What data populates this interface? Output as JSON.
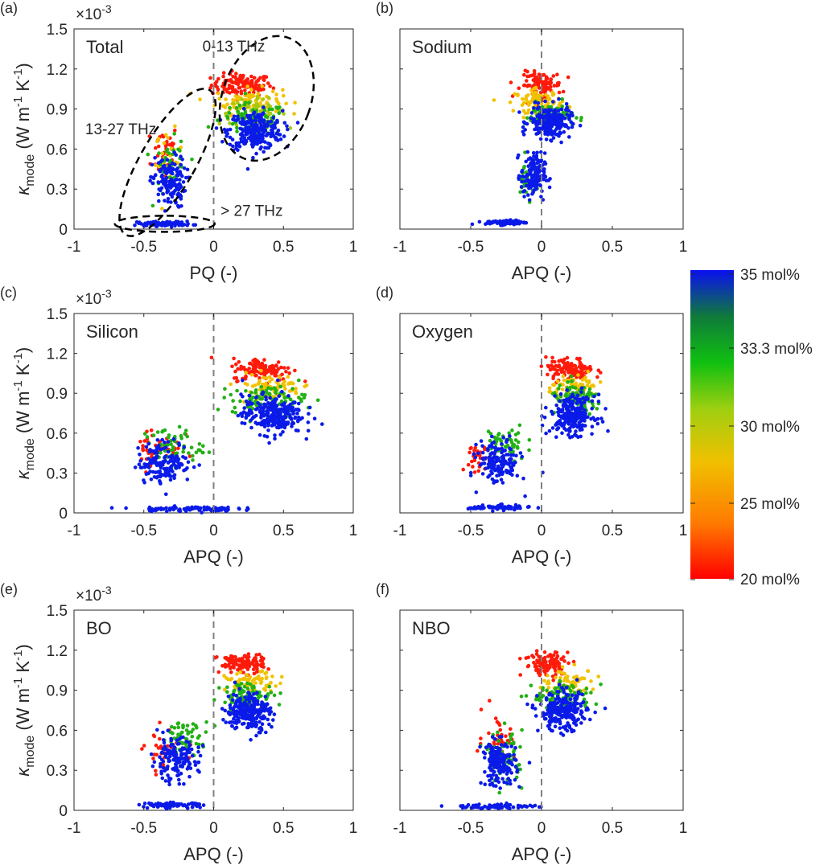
{
  "figure": {
    "colorbar": {
      "tick_labels": [
        "35 mol%",
        "33.3 mol%",
        "30 mol%",
        "25 mol%",
        "20 mol%"
      ],
      "tick_values": [
        35,
        33.3,
        30,
        25,
        20
      ],
      "colors": [
        "#0a10f0",
        "#0f7a3a",
        "#10c010",
        "#9fcf10",
        "#f0c000",
        "#ff7a00",
        "#ff0000"
      ]
    },
    "series_colors": {
      "c35": "#0a1ae8",
      "c333": "#22b014",
      "c30": "#a8c810",
      "c25": "#f2c200",
      "c20": "#ff1a0a"
    },
    "dashed_zero_color": "#808080",
    "multiplier": "×10",
    "multiplier_exp": "-3",
    "ylabel": {
      "kappa": "κ",
      "sub": "mode",
      "units_a": "(W m",
      "units_b": " K",
      "units_c": ")",
      "exp": "-1"
    }
  },
  "chart_data": [
    {
      "type": "scatter",
      "panel": "(a)",
      "title": "Total",
      "xlabel": "PQ (-)",
      "ylabel": "κ_mode (W m^-1 K^-1)",
      "xlim": [
        -1,
        1
      ],
      "ylim": [
        0,
        1.5
      ],
      "y_scale": "×10^-3",
      "xticks": [
        "-1",
        "-0.5",
        "0",
        "0.5",
        "1"
      ],
      "yticks": [
        "0",
        "0.3",
        "0.6",
        "0.9",
        "1.2",
        "1.5"
      ],
      "multiplier_shown": true,
      "annotations": [
        "0-13 THz",
        "13-27 THz",
        "> 27 THz"
      ],
      "series": [
        {
          "name": "20 mol%",
          "color": "c20",
          "clusters": [
            [
              0.2,
              1.08,
              0.18,
              0.07,
              120
            ],
            [
              -0.35,
              0.58,
              0.08,
              0.18,
              40
            ]
          ]
        },
        {
          "name": "25 mol%",
          "color": "c25",
          "clusters": [
            [
              0.25,
              0.96,
              0.2,
              0.08,
              90
            ],
            [
              -0.32,
              0.52,
              0.08,
              0.18,
              30
            ]
          ]
        },
        {
          "name": "30 mol%",
          "color": "c30",
          "clusters": [
            [
              0.28,
              0.88,
              0.2,
              0.08,
              60
            ]
          ]
        },
        {
          "name": "33.3 mol%",
          "color": "c333",
          "clusters": [
            [
              0.28,
              0.82,
              0.2,
              0.1,
              90
            ],
            [
              -0.3,
              0.45,
              0.1,
              0.18,
              40
            ]
          ]
        },
        {
          "name": "35 mol%",
          "color": "c35",
          "clusters": [
            [
              0.3,
              0.74,
              0.16,
              0.12,
              260
            ],
            [
              -0.32,
              0.35,
              0.1,
              0.16,
              140
            ],
            [
              -0.35,
              0.04,
              0.16,
              0.015,
              90
            ]
          ]
        }
      ]
    },
    {
      "type": "scatter",
      "panel": "(b)",
      "title": "Sodium",
      "xlabel": "APQ (-)",
      "ylabel": "",
      "xlim": [
        -1,
        1
      ],
      "ylim": [
        0,
        1.5
      ],
      "xticks": [
        "-1",
        "-0.5",
        "0",
        "0.5",
        "1"
      ],
      "yticks": [],
      "multiplier_shown": false,
      "series": [
        {
          "name": "20 mol%",
          "color": "c20",
          "clusters": [
            [
              0.0,
              1.08,
              0.12,
              0.08,
              110
            ]
          ]
        },
        {
          "name": "25 mol%",
          "color": "c25",
          "clusters": [
            [
              -0.02,
              0.96,
              0.14,
              0.07,
              80
            ]
          ]
        },
        {
          "name": "33.3 mol%",
          "color": "c333",
          "clusters": [
            [
              0.05,
              0.85,
              0.14,
              0.08,
              80
            ],
            [
              -0.1,
              0.38,
              0.07,
              0.12,
              30
            ]
          ]
        },
        {
          "name": "35 mol%",
          "color": "c35",
          "clusters": [
            [
              0.06,
              0.8,
              0.12,
              0.1,
              220
            ],
            [
              -0.06,
              0.4,
              0.07,
              0.14,
              150
            ],
            [
              -0.25,
              0.05,
              0.12,
              0.015,
              80
            ]
          ]
        }
      ]
    },
    {
      "type": "scatter",
      "panel": "(c)",
      "title": "Silicon",
      "xlabel": "APQ (-)",
      "ylabel": "κ_mode (W m^-1 K^-1)",
      "xlim": [
        -1,
        1
      ],
      "ylim": [
        0,
        1.5
      ],
      "xticks": [
        "-1",
        "-0.5",
        "0",
        "0.5",
        "1"
      ],
      "yticks": [
        "0",
        "0.3",
        "0.6",
        "0.9",
        "1.2",
        "1.5"
      ],
      "multiplier_shown": true,
      "series": [
        {
          "name": "20 mol%",
          "color": "c20",
          "clusters": [
            [
              0.35,
              1.08,
              0.18,
              0.07,
              120
            ],
            [
              -0.4,
              0.5,
              0.14,
              0.15,
              40
            ]
          ]
        },
        {
          "name": "25 mol%",
          "color": "c25",
          "clusters": [
            [
              0.4,
              0.95,
              0.2,
              0.08,
              80
            ]
          ]
        },
        {
          "name": "33.3 mol%",
          "color": "c333",
          "clusters": [
            [
              0.4,
              0.85,
              0.22,
              0.09,
              100
            ],
            [
              -0.3,
              0.5,
              0.18,
              0.12,
              60
            ]
          ]
        },
        {
          "name": "35 mol%",
          "color": "c35",
          "clusters": [
            [
              0.42,
              0.74,
              0.18,
              0.12,
              260
            ],
            [
              -0.35,
              0.38,
              0.16,
              0.13,
              150
            ],
            [
              -0.2,
              0.03,
              0.3,
              0.015,
              90
            ]
          ]
        }
      ]
    },
    {
      "type": "scatter",
      "panel": "(d)",
      "title": "Oxygen",
      "xlabel": "APQ (-)",
      "ylabel": "",
      "xlim": [
        -1,
        1
      ],
      "ylim": [
        0,
        1.5
      ],
      "xticks": [
        "-1",
        "-0.5",
        "0",
        "0.5",
        "1"
      ],
      "yticks": [],
      "multiplier_shown": false,
      "series": [
        {
          "name": "20 mol%",
          "color": "c20",
          "clusters": [
            [
              0.2,
              1.08,
              0.14,
              0.07,
              110
            ],
            [
              -0.45,
              0.4,
              0.06,
              0.14,
              30
            ]
          ]
        },
        {
          "name": "25 mol%",
          "color": "c25",
          "clusters": [
            [
              0.25,
              0.95,
              0.16,
              0.07,
              70
            ]
          ]
        },
        {
          "name": "33.3 mol%",
          "color": "c333",
          "clusters": [
            [
              0.25,
              0.85,
              0.16,
              0.09,
              90
            ],
            [
              -0.25,
              0.52,
              0.12,
              0.12,
              50
            ]
          ]
        },
        {
          "name": "35 mol%",
          "color": "c35",
          "clusters": [
            [
              0.22,
              0.74,
              0.13,
              0.12,
              240
            ],
            [
              -0.3,
              0.38,
              0.12,
              0.14,
              150
            ],
            [
              -0.3,
              0.04,
              0.18,
              0.015,
              80
            ]
          ]
        }
      ]
    },
    {
      "type": "scatter",
      "panel": "(e)",
      "title": "BO",
      "xlabel": "APQ (-)",
      "ylabel": "κ_mode (W m^-1 K^-1)",
      "xlim": [
        -1,
        1
      ],
      "ylim": [
        0,
        1.5
      ],
      "xticks": [
        "-1",
        "-0.5",
        "0",
        "0.5",
        "1"
      ],
      "yticks": [
        "0",
        "0.3",
        "0.6",
        "0.9",
        "1.2",
        "1.5"
      ],
      "multiplier_shown": true,
      "series": [
        {
          "name": "20 mol%",
          "color": "c20",
          "clusters": [
            [
              0.2,
              1.1,
              0.14,
              0.06,
              110
            ],
            [
              -0.35,
              0.45,
              0.12,
              0.14,
              30
            ]
          ]
        },
        {
          "name": "25 mol%",
          "color": "c25",
          "clusters": [
            [
              0.28,
              0.95,
              0.16,
              0.07,
              70
            ]
          ]
        },
        {
          "name": "33.3 mol%",
          "color": "c333",
          "clusters": [
            [
              0.25,
              0.86,
              0.16,
              0.08,
              90
            ],
            [
              -0.2,
              0.55,
              0.14,
              0.1,
              60
            ]
          ]
        },
        {
          "name": "35 mol%",
          "color": "c35",
          "clusters": [
            [
              0.25,
              0.74,
              0.13,
              0.12,
              240
            ],
            [
              -0.28,
              0.38,
              0.14,
              0.13,
              150
            ],
            [
              -0.3,
              0.04,
              0.18,
              0.015,
              80
            ]
          ]
        }
      ]
    },
    {
      "type": "scatter",
      "panel": "(f)",
      "title": "NBO",
      "xlabel": "APQ (-)",
      "ylabel": "",
      "xlim": [
        -1,
        1
      ],
      "ylim": [
        0,
        1.5
      ],
      "xticks": [
        "-1",
        "-0.5",
        "0",
        "0.5",
        "1"
      ],
      "yticks": [],
      "multiplier_shown": false,
      "series": [
        {
          "name": "20 mol%",
          "color": "c20",
          "clusters": [
            [
              0.05,
              1.1,
              0.14,
              0.08,
              110
            ],
            [
              -0.3,
              0.55,
              0.1,
              0.16,
              40
            ]
          ]
        },
        {
          "name": "25 mol%",
          "color": "c25",
          "clusters": [
            [
              0.2,
              0.96,
              0.16,
              0.08,
              70
            ]
          ]
        },
        {
          "name": "33.3 mol%",
          "color": "c333",
          "clusters": [
            [
              0.15,
              0.85,
              0.18,
              0.09,
              90
            ],
            [
              -0.25,
              0.4,
              0.1,
              0.16,
              60
            ]
          ]
        },
        {
          "name": "35 mol%",
          "color": "c35",
          "clusters": [
            [
              0.15,
              0.74,
              0.14,
              0.12,
              240
            ],
            [
              -0.3,
              0.35,
              0.1,
              0.14,
              160
            ],
            [
              -0.3,
              0.03,
              0.22,
              0.015,
              80
            ]
          ]
        }
      ]
    }
  ]
}
